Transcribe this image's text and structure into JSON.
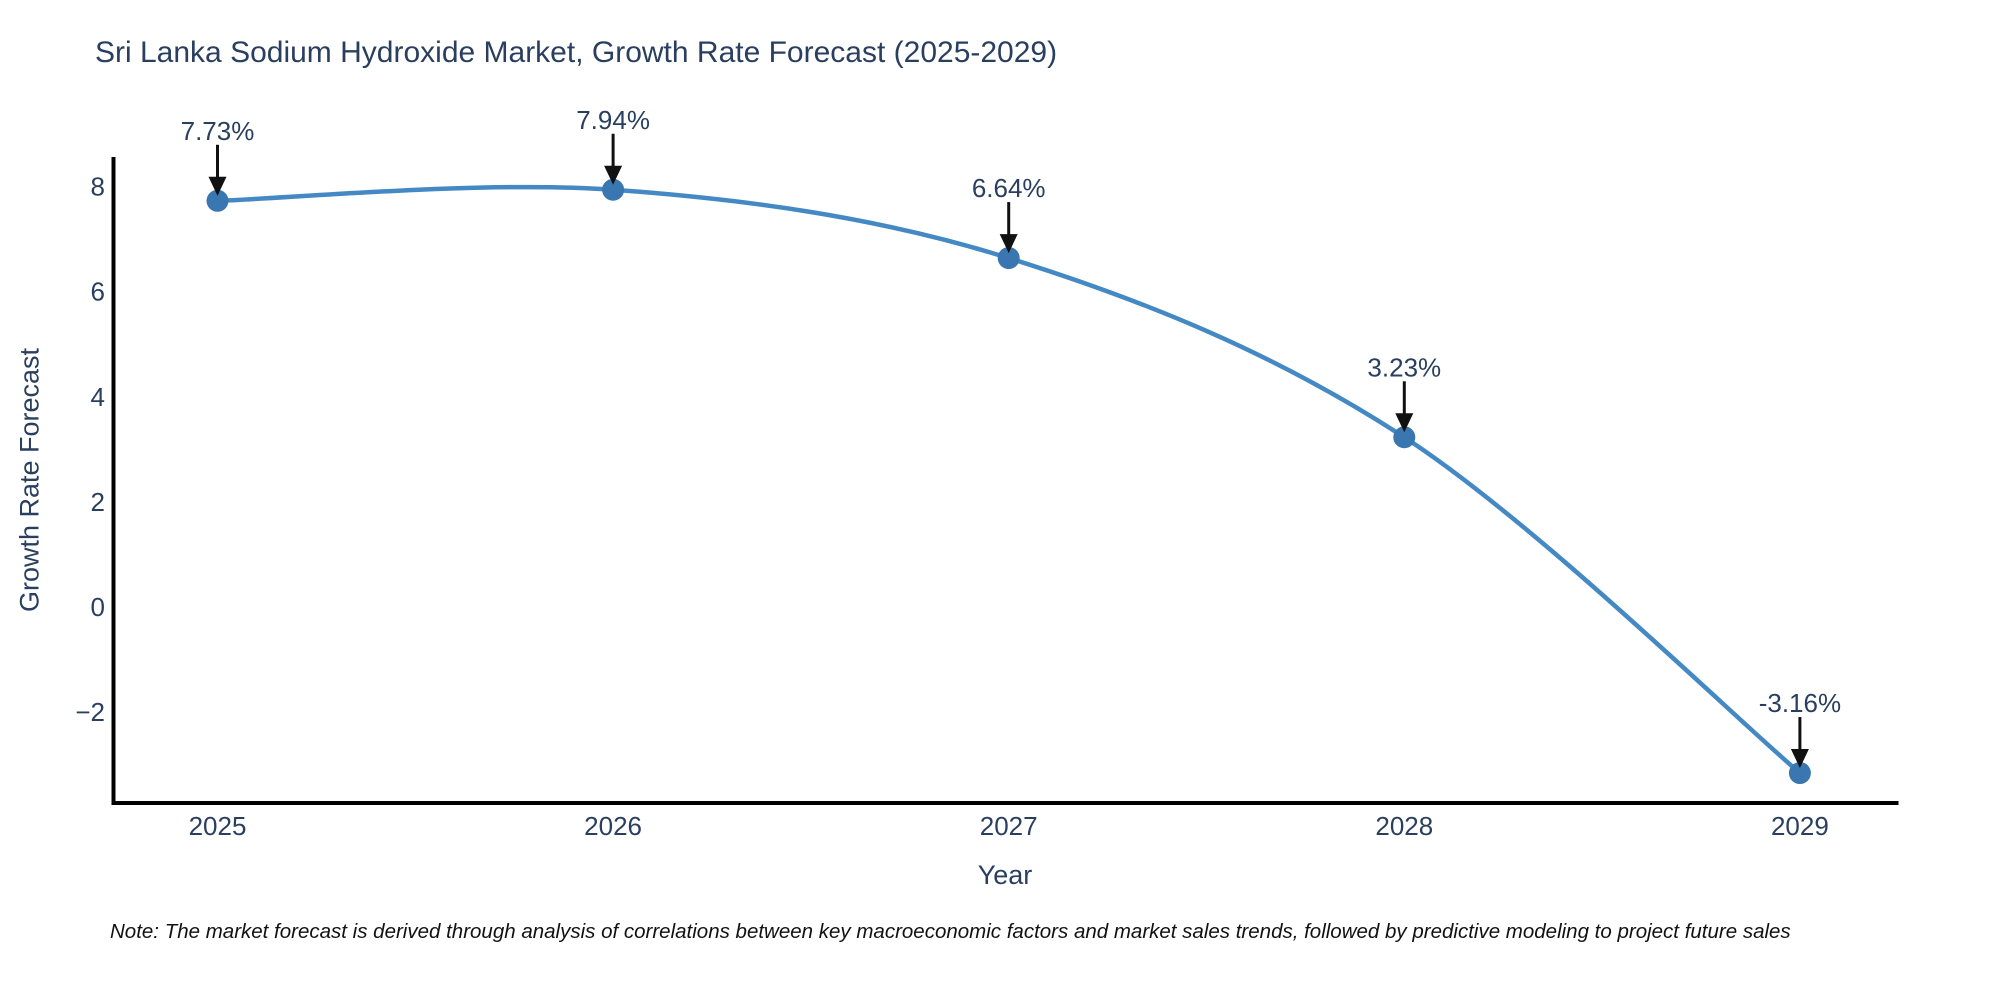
{
  "title": "Sri Lanka Sodium Hydroxide Market, Growth Rate Forecast (2025-2029)",
  "note": "Note: The market forecast is derived through analysis of correlations between key macroeconomic factors and market sales trends, followed by predictive modeling to project future sales",
  "chart_data": {
    "type": "line",
    "title": "Sri Lanka Sodium Hydroxide Market, Growth Rate Forecast (2025-2029)",
    "x": [
      2025,
      2026,
      2027,
      2028,
      2029
    ],
    "series": [
      {
        "name": "Growth Rate Forecast",
        "values": [
          7.73,
          7.94,
          6.64,
          3.23,
          -3.16
        ]
      }
    ],
    "point_labels": [
      "7.73%",
      "7.94%",
      "6.64%",
      "3.23%",
      "-3.16%"
    ],
    "xlabel": "Year",
    "ylabel": "Growth Rate Forecast",
    "xtick_labels": [
      "2025",
      "2026",
      "2027",
      "2028",
      "2029"
    ],
    "ytick_values": [
      8,
      6,
      4,
      2,
      0,
      -2
    ],
    "ytick_labels": [
      "8",
      "6",
      "4",
      "2",
      "0",
      "−2"
    ],
    "ylim": [
      -3.8,
      8.6
    ],
    "grid": false,
    "legend": "none",
    "line_shape": "spline",
    "annotations_have_arrows": true,
    "colors": {
      "line": "#4589c4",
      "marker": "#3a77b1",
      "text": "#2a3f5f",
      "annotation_arrow": "#111111",
      "axis": "#000000",
      "background": "#ffffff"
    }
  }
}
